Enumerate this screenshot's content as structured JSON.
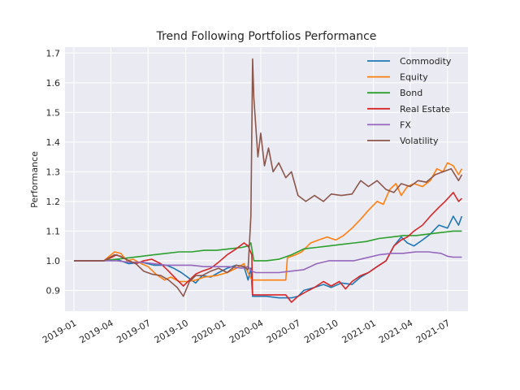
{
  "chart_data": {
    "type": "line",
    "title": "Trend Following Portfolios Performance",
    "xlabel": "",
    "ylabel": "Performance",
    "xlim": [
      "2018-12-10",
      "2021-08-20"
    ],
    "ylim": [
      0.83,
      1.72
    ],
    "grid": true,
    "legend_position": "top-right",
    "x_ticks": [
      "2019-01",
      "2019-04",
      "2019-07",
      "2019-10",
      "2020-01",
      "2020-04",
      "2020-07",
      "2020-10",
      "2021-01",
      "2021-04",
      "2021-07"
    ],
    "y_ticks": [
      0.9,
      1.0,
      1.1,
      1.2,
      1.3,
      1.4,
      1.5,
      1.6,
      1.7
    ],
    "y_tick_labels": [
      "0.9",
      "1.0",
      "1.1",
      "1.2",
      "1.3",
      "1.4",
      "1.5",
      "1.6",
      "1.7"
    ],
    "series": [
      {
        "name": "Commodity",
        "color": "#1f77b4",
        "points": [
          [
            "2019-01-01",
            1.0
          ],
          [
            "2019-03-15",
            1.0
          ],
          [
            "2019-04-15",
            1.005
          ],
          [
            "2019-05-15",
            0.99
          ],
          [
            "2019-06-15",
            0.995
          ],
          [
            "2019-07-15",
            0.985
          ],
          [
            "2019-08-15",
            0.985
          ],
          [
            "2019-09-01",
            0.975
          ],
          [
            "2019-09-20",
            0.96
          ],
          [
            "2019-10-10",
            0.94
          ],
          [
            "2019-10-25",
            0.925
          ],
          [
            "2019-11-10",
            0.95
          ],
          [
            "2019-12-01",
            0.945
          ],
          [
            "2019-12-20",
            0.96
          ],
          [
            "2020-01-10",
            0.975
          ],
          [
            "2020-02-01",
            0.985
          ],
          [
            "2020-02-20",
            0.98
          ],
          [
            "2020-03-01",
            0.935
          ],
          [
            "2020-03-08",
            0.975
          ],
          [
            "2020-03-12",
            0.88
          ],
          [
            "2020-04-15",
            0.88
          ],
          [
            "2020-05-15",
            0.875
          ],
          [
            "2020-06-15",
            0.875
          ],
          [
            "2020-07-01",
            0.88
          ],
          [
            "2020-07-15",
            0.9
          ],
          [
            "2020-08-10",
            0.91
          ],
          [
            "2020-09-01",
            0.92
          ],
          [
            "2020-09-20",
            0.91
          ],
          [
            "2020-10-15",
            0.925
          ],
          [
            "2020-11-10",
            0.92
          ],
          [
            "2020-12-01",
            0.945
          ],
          [
            "2020-12-20",
            0.96
          ],
          [
            "2021-01-10",
            0.98
          ],
          [
            "2021-02-01",
            1.0
          ],
          [
            "2021-02-20",
            1.05
          ],
          [
            "2021-03-10",
            1.08
          ],
          [
            "2021-03-25",
            1.06
          ],
          [
            "2021-04-10",
            1.05
          ],
          [
            "2021-05-01",
            1.07
          ],
          [
            "2021-05-20",
            1.09
          ],
          [
            "2021-06-10",
            1.12
          ],
          [
            "2021-07-01",
            1.11
          ],
          [
            "2021-07-15",
            1.15
          ],
          [
            "2021-07-28",
            1.12
          ],
          [
            "2021-08-05",
            1.15
          ]
        ]
      },
      {
        "name": "Equity",
        "color": "#ff7f0e",
        "points": [
          [
            "2019-01-01",
            1.0
          ],
          [
            "2019-03-15",
            1.0
          ],
          [
            "2019-04-10",
            1.03
          ],
          [
            "2019-04-25",
            1.025
          ],
          [
            "2019-05-10",
            1.0
          ],
          [
            "2019-05-25",
            1.005
          ],
          [
            "2019-06-15",
            0.99
          ],
          [
            "2019-07-01",
            0.98
          ],
          [
            "2019-07-20",
            0.955
          ],
          [
            "2019-08-10",
            0.935
          ],
          [
            "2019-08-25",
            0.945
          ],
          [
            "2019-09-15",
            0.93
          ],
          [
            "2019-10-05",
            0.93
          ],
          [
            "2019-10-25",
            0.935
          ],
          [
            "2019-11-15",
            0.945
          ],
          [
            "2019-12-15",
            0.95
          ],
          [
            "2020-01-10",
            0.96
          ],
          [
            "2020-02-01",
            0.975
          ],
          [
            "2020-02-20",
            0.99
          ],
          [
            "2020-03-01",
            0.96
          ],
          [
            "2020-03-10",
            0.935
          ],
          [
            "2020-04-15",
            0.935
          ],
          [
            "2020-05-15",
            0.935
          ],
          [
            "2020-06-01",
            0.935
          ],
          [
            "2020-06-05",
            1.01
          ],
          [
            "2020-06-25",
            1.02
          ],
          [
            "2020-07-10",
            1.03
          ],
          [
            "2020-08-01",
            1.06
          ],
          [
            "2020-08-20",
            1.07
          ],
          [
            "2020-09-10",
            1.08
          ],
          [
            "2020-10-01",
            1.07
          ],
          [
            "2020-10-20",
            1.085
          ],
          [
            "2020-11-10",
            1.11
          ],
          [
            "2020-12-01",
            1.14
          ],
          [
            "2020-12-20",
            1.17
          ],
          [
            "2021-01-10",
            1.2
          ],
          [
            "2021-01-25",
            1.19
          ],
          [
            "2021-02-10",
            1.24
          ],
          [
            "2021-02-25",
            1.26
          ],
          [
            "2021-03-10",
            1.22
          ],
          [
            "2021-03-25",
            1.25
          ],
          [
            "2021-04-10",
            1.26
          ],
          [
            "2021-05-01",
            1.25
          ],
          [
            "2021-05-20",
            1.27
          ],
          [
            "2021-06-05",
            1.31
          ],
          [
            "2021-06-20",
            1.3
          ],
          [
            "2021-07-01",
            1.33
          ],
          [
            "2021-07-15",
            1.32
          ],
          [
            "2021-07-28",
            1.29
          ],
          [
            "2021-08-05",
            1.31
          ]
        ]
      },
      {
        "name": "Bond",
        "color": "#2ca02c",
        "points": [
          [
            "2019-01-01",
            1.0
          ],
          [
            "2019-03-15",
            1.0
          ],
          [
            "2019-04-15",
            1.005
          ],
          [
            "2019-05-15",
            1.01
          ],
          [
            "2019-06-15",
            1.015
          ],
          [
            "2019-07-15",
            1.02
          ],
          [
            "2019-08-15",
            1.025
          ],
          [
            "2019-09-15",
            1.03
          ],
          [
            "2019-10-15",
            1.03
          ],
          [
            "2019-11-15",
            1.035
          ],
          [
            "2019-12-15",
            1.035
          ],
          [
            "2020-01-15",
            1.04
          ],
          [
            "2020-02-15",
            1.045
          ],
          [
            "2020-03-01",
            1.05
          ],
          [
            "2020-03-08",
            1.06
          ],
          [
            "2020-03-15",
            1.0
          ],
          [
            "2020-03-25",
            1.0
          ],
          [
            "2020-04-15",
            1.0
          ],
          [
            "2020-05-15",
            1.005
          ],
          [
            "2020-06-15",
            1.02
          ],
          [
            "2020-07-15",
            1.04
          ],
          [
            "2020-08-15",
            1.045
          ],
          [
            "2020-09-15",
            1.05
          ],
          [
            "2020-10-15",
            1.055
          ],
          [
            "2020-11-15",
            1.06
          ],
          [
            "2020-12-15",
            1.065
          ],
          [
            "2021-01-15",
            1.075
          ],
          [
            "2021-02-15",
            1.08
          ],
          [
            "2021-03-15",
            1.085
          ],
          [
            "2021-04-15",
            1.085
          ],
          [
            "2021-05-15",
            1.09
          ],
          [
            "2021-06-15",
            1.095
          ],
          [
            "2021-07-15",
            1.1
          ],
          [
            "2021-08-05",
            1.1
          ]
        ]
      },
      {
        "name": "Real Estate",
        "color": "#d62728",
        "points": [
          [
            "2019-01-01",
            1.0
          ],
          [
            "2019-03-15",
            1.0
          ],
          [
            "2019-04-01",
            1.01
          ],
          [
            "2019-04-15",
            1.02
          ],
          [
            "2019-05-01",
            1.01
          ],
          [
            "2019-05-15",
            1.0
          ],
          [
            "2019-06-01",
            0.99
          ],
          [
            "2019-06-20",
            1.0
          ],
          [
            "2019-07-10",
            1.005
          ],
          [
            "2019-08-01",
            0.99
          ],
          [
            "2019-08-20",
            0.965
          ],
          [
            "2019-09-10",
            0.935
          ],
          [
            "2019-09-25",
            0.915
          ],
          [
            "2019-10-10",
            0.935
          ],
          [
            "2019-10-25",
            0.955
          ],
          [
            "2019-11-10",
            0.965
          ],
          [
            "2019-12-01",
            0.975
          ],
          [
            "2019-12-20",
            0.995
          ],
          [
            "2020-01-10",
            1.02
          ],
          [
            "2020-02-01",
            1.04
          ],
          [
            "2020-02-20",
            1.06
          ],
          [
            "2020-03-01",
            1.05
          ],
          [
            "2020-03-10",
            1.02
          ],
          [
            "2020-03-12",
            0.885
          ],
          [
            "2020-04-15",
            0.885
          ],
          [
            "2020-05-15",
            0.885
          ],
          [
            "2020-06-01",
            0.885
          ],
          [
            "2020-06-15",
            0.86
          ],
          [
            "2020-07-01",
            0.88
          ],
          [
            "2020-07-20",
            0.895
          ],
          [
            "2020-08-10",
            0.91
          ],
          [
            "2020-09-01",
            0.93
          ],
          [
            "2020-09-20",
            0.915
          ],
          [
            "2020-10-10",
            0.93
          ],
          [
            "2020-10-25",
            0.905
          ],
          [
            "2020-11-10",
            0.93
          ],
          [
            "2020-12-01",
            0.95
          ],
          [
            "2020-12-20",
            0.96
          ],
          [
            "2021-01-10",
            0.98
          ],
          [
            "2021-02-01",
            1.0
          ],
          [
            "2021-02-20",
            1.05
          ],
          [
            "2021-03-10",
            1.07
          ],
          [
            "2021-03-25",
            1.08
          ],
          [
            "2021-04-10",
            1.1
          ],
          [
            "2021-05-01",
            1.12
          ],
          [
            "2021-05-20",
            1.15
          ],
          [
            "2021-06-10",
            1.18
          ],
          [
            "2021-06-25",
            1.2
          ],
          [
            "2021-07-15",
            1.23
          ],
          [
            "2021-07-28",
            1.2
          ],
          [
            "2021-08-05",
            1.21
          ]
        ]
      },
      {
        "name": "FX",
        "color": "#9467bd",
        "points": [
          [
            "2019-01-01",
            1.0
          ],
          [
            "2019-03-15",
            1.0
          ],
          [
            "2019-04-15",
            1.0
          ],
          [
            "2019-05-15",
            0.995
          ],
          [
            "2019-06-15",
            0.995
          ],
          [
            "2019-07-15",
            0.99
          ],
          [
            "2019-08-15",
            0.985
          ],
          [
            "2019-09-15",
            0.985
          ],
          [
            "2019-10-15",
            0.985
          ],
          [
            "2019-11-15",
            0.98
          ],
          [
            "2019-12-15",
            0.98
          ],
          [
            "2020-01-15",
            0.98
          ],
          [
            "2020-02-15",
            0.975
          ],
          [
            "2020-03-01",
            0.98
          ],
          [
            "2020-03-10",
            0.965
          ],
          [
            "2020-03-20",
            0.96
          ],
          [
            "2020-04-15",
            0.96
          ],
          [
            "2020-05-15",
            0.96
          ],
          [
            "2020-06-15",
            0.965
          ],
          [
            "2020-07-15",
            0.97
          ],
          [
            "2020-08-15",
            0.99
          ],
          [
            "2020-09-15",
            1.0
          ],
          [
            "2020-10-15",
            1.0
          ],
          [
            "2020-11-15",
            1.0
          ],
          [
            "2020-12-15",
            1.01
          ],
          [
            "2021-01-15",
            1.02
          ],
          [
            "2021-02-15",
            1.025
          ],
          [
            "2021-03-15",
            1.025
          ],
          [
            "2021-04-15",
            1.03
          ],
          [
            "2021-05-15",
            1.03
          ],
          [
            "2021-06-15",
            1.025
          ],
          [
            "2021-07-01",
            1.015
          ],
          [
            "2021-07-15",
            1.012
          ],
          [
            "2021-08-05",
            1.012
          ]
        ]
      },
      {
        "name": "Volatility",
        "color": "#8c564b",
        "points": [
          [
            "2019-01-01",
            1.0
          ],
          [
            "2019-03-15",
            1.0
          ],
          [
            "2019-04-10",
            1.02
          ],
          [
            "2019-04-25",
            1.015
          ],
          [
            "2019-05-15",
            1.0
          ],
          [
            "2019-06-01",
            0.99
          ],
          [
            "2019-06-20",
            0.965
          ],
          [
            "2019-07-10",
            0.955
          ],
          [
            "2019-08-01",
            0.95
          ],
          [
            "2019-08-20",
            0.935
          ],
          [
            "2019-09-10",
            0.91
          ],
          [
            "2019-09-25",
            0.88
          ],
          [
            "2019-10-10",
            0.93
          ],
          [
            "2019-10-25",
            0.95
          ],
          [
            "2019-11-10",
            0.95
          ],
          [
            "2019-12-01",
            0.965
          ],
          [
            "2019-12-20",
            0.975
          ],
          [
            "2020-01-10",
            0.96
          ],
          [
            "2020-02-01",
            0.985
          ],
          [
            "2020-02-20",
            0.98
          ],
          [
            "2020-03-01",
            0.97
          ],
          [
            "2020-03-08",
            1.15
          ],
          [
            "2020-03-12",
            1.68
          ],
          [
            "2020-03-15",
            1.55
          ],
          [
            "2020-03-20",
            1.45
          ],
          [
            "2020-03-25",
            1.35
          ],
          [
            "2020-04-01",
            1.43
          ],
          [
            "2020-04-10",
            1.32
          ],
          [
            "2020-04-20",
            1.38
          ],
          [
            "2020-05-01",
            1.3
          ],
          [
            "2020-05-15",
            1.33
          ],
          [
            "2020-06-01",
            1.28
          ],
          [
            "2020-06-15",
            1.3
          ],
          [
            "2020-07-01",
            1.22
          ],
          [
            "2020-07-20",
            1.2
          ],
          [
            "2020-08-10",
            1.22
          ],
          [
            "2020-09-01",
            1.2
          ],
          [
            "2020-09-20",
            1.225
          ],
          [
            "2020-10-15",
            1.22
          ],
          [
            "2020-11-10",
            1.225
          ],
          [
            "2020-12-01",
            1.27
          ],
          [
            "2020-12-20",
            1.25
          ],
          [
            "2021-01-10",
            1.27
          ],
          [
            "2021-02-01",
            1.24
          ],
          [
            "2021-02-20",
            1.23
          ],
          [
            "2021-03-10",
            1.26
          ],
          [
            "2021-04-01",
            1.25
          ],
          [
            "2021-04-20",
            1.27
          ],
          [
            "2021-05-10",
            1.265
          ],
          [
            "2021-06-01",
            1.29
          ],
          [
            "2021-06-20",
            1.3
          ],
          [
            "2021-07-10",
            1.31
          ],
          [
            "2021-07-28",
            1.27
          ],
          [
            "2021-08-05",
            1.29
          ]
        ]
      }
    ]
  }
}
